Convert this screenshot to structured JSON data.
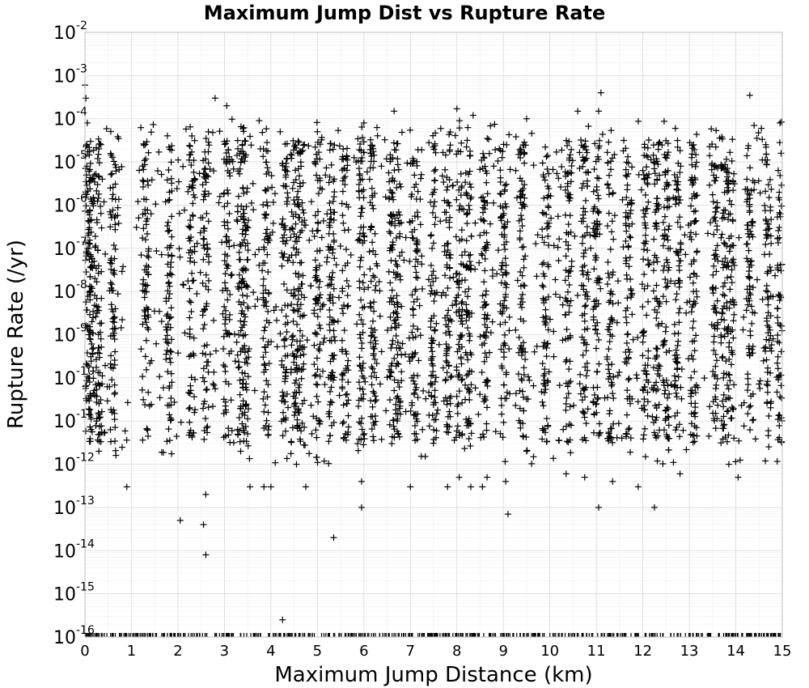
{
  "chart_data": {
    "type": "scatter",
    "title": "Maximum Jump Dist vs Rupture Rate",
    "xlabel": "Maximum Jump Distance (km)",
    "ylabel": "Rupture Rate (/yr)",
    "xlim": [
      0,
      15
    ],
    "ylim": [
      1e-16,
      0.01
    ],
    "y_scale": "log",
    "grid": true,
    "marker": "plus",
    "marker_color": "#000000",
    "x_ticks": [
      "0",
      "1",
      "2",
      "3",
      "4",
      "5",
      "6",
      "7",
      "8",
      "9",
      "10",
      "11",
      "12",
      "13",
      "14",
      "15"
    ],
    "y_ticks": [
      {
        "base": "10",
        "exp": "-2"
      },
      {
        "base": "10",
        "exp": "-3"
      },
      {
        "base": "10",
        "exp": "-4"
      },
      {
        "base": "10",
        "exp": "-5"
      },
      {
        "base": "10",
        "exp": "-6"
      },
      {
        "base": "10",
        "exp": "-7"
      },
      {
        "base": "10",
        "exp": "-8"
      },
      {
        "base": "10",
        "exp": "-9"
      },
      {
        "base": "10",
        "exp": "-10"
      },
      {
        "base": "10",
        "exp": "-11"
      },
      {
        "base": "10",
        "exp": "-12"
      },
      {
        "base": "10",
        "exp": "-13"
      },
      {
        "base": "10",
        "exp": "-14"
      },
      {
        "base": "10",
        "exp": "-15"
      },
      {
        "base": "10",
        "exp": "-16"
      }
    ],
    "cluster_columns_km": [
      0.05,
      0.15,
      0.3,
      0.6,
      1.3,
      1.8,
      2.3,
      2.6,
      3.05,
      3.35,
      3.45,
      3.9,
      4.3,
      4.5,
      4.65,
      5.0,
      5.3,
      5.6,
      5.95,
      6.2,
      6.6,
      6.75,
      7.1,
      7.5,
      7.8,
      8.05,
      8.25,
      8.6,
      9.0,
      9.4,
      9.9,
      10.4,
      10.75,
      11.0,
      11.3,
      11.7,
      12.05,
      12.3,
      12.5,
      12.75,
      13.1,
      13.55,
      13.75,
      13.9,
      14.3,
      14.7,
      14.95
    ],
    "series": [
      {
        "points": [
          [
            0.02,
            0.0003
          ],
          [
            0.0,
            0.0006
          ],
          [
            0.05,
            8e-05
          ],
          [
            0.12,
            3e-05
          ],
          [
            0.2,
            5e-06
          ],
          [
            0.3,
            2e-05
          ],
          [
            0.1,
            3e-07
          ],
          [
            0.2,
            4e-08
          ],
          [
            0.15,
            2e-09
          ],
          [
            0.3,
            5e-10
          ],
          [
            0.1,
            8e-11
          ],
          [
            0.25,
            1e-11
          ],
          [
            0.3,
            2e-12
          ],
          [
            0.9,
            3e-13
          ],
          [
            2.05,
            5e-14
          ],
          [
            2.55,
            4e-14
          ],
          [
            2.6,
            8e-15
          ],
          [
            2.6,
            2e-13
          ],
          [
            3.35,
            2e-12
          ],
          [
            3.55,
            3e-13
          ],
          [
            3.85,
            3e-13
          ],
          [
            4.0,
            3e-13
          ],
          [
            4.25,
            2.5e-16
          ],
          [
            4.55,
            1e-12
          ],
          [
            4.75,
            3e-13
          ],
          [
            5.35,
            2e-14
          ],
          [
            5.95,
            4e-13
          ],
          [
            5.95,
            1e-13
          ],
          [
            6.6,
            3e-12
          ],
          [
            7.0,
            3e-13
          ],
          [
            7.8,
            3e-13
          ],
          [
            8.05,
            5e-13
          ],
          [
            8.3,
            3e-13
          ],
          [
            8.55,
            3e-13
          ],
          [
            8.65,
            5e-13
          ],
          [
            9.05,
            4e-13
          ],
          [
            9.1,
            7e-14
          ],
          [
            9.5,
            2e-12
          ],
          [
            10.35,
            6e-13
          ],
          [
            10.75,
            5e-13
          ],
          [
            11.05,
            1e-13
          ],
          [
            11.35,
            4e-13
          ],
          [
            11.9,
            3e-13
          ],
          [
            12.25,
            1e-13
          ],
          [
            12.8,
            6e-13
          ],
          [
            13.85,
            1e-12
          ],
          [
            14.05,
            5e-13
          ],
          [
            2.3,
            4e-05
          ],
          [
            2.8,
            0.0003
          ],
          [
            3.05,
            0.0002
          ],
          [
            3.4,
            6e-05
          ],
          [
            4.2,
            5e-05
          ],
          [
            5.0,
            5e-05
          ],
          [
            6.0,
            8e-05
          ],
          [
            6.65,
            0.00015
          ],
          [
            8.0,
            0.00017
          ],
          [
            8.35,
            0.00012
          ],
          [
            9.5,
            0.0001
          ],
          [
            10.6,
            0.00015
          ],
          [
            11.05,
            0.00015
          ],
          [
            11.1,
            0.0004
          ],
          [
            12.7,
            6e-05
          ],
          [
            14.3,
            0.00035
          ],
          [
            14.55,
            6e-05
          ],
          [
            14.95,
            8e-05
          ]
        ]
      }
    ]
  }
}
